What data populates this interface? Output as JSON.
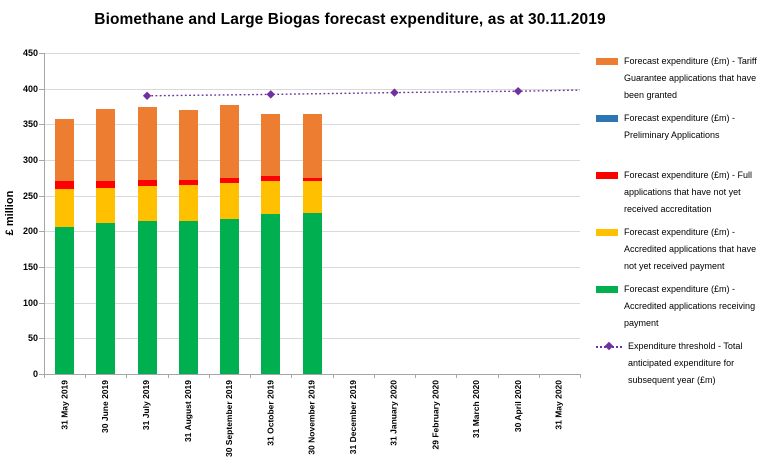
{
  "chart_data": {
    "type": "bar",
    "stacked": true,
    "title": "Biomethane and Large Biogas forecast expenditure, as at 30.11.2019",
    "ylabel": "£ million",
    "ylim": [
      0,
      450
    ],
    "ytick_interval": 50,
    "grid": "horizontal",
    "legend_position": "right",
    "categories": [
      "31 May 2019",
      "30 June 2019",
      "31 July 2019",
      "31 August 2019",
      "30 September 2019",
      "31 October 2019",
      "30 November 2019",
      "31 December 2019",
      "31 January 2020",
      "29 February 2020",
      "31 March 2020",
      "30 April 2020",
      "31 May 2020"
    ],
    "series": [
      {
        "name": "Forecast expenditure (£m) - Tariff Guarantee applications that have been granted",
        "color": "#ED7D31",
        "values": [
          88,
          101,
          102,
          98,
          102,
          88,
          89,
          0,
          0,
          0,
          0,
          0,
          0
        ]
      },
      {
        "name": "Forecast expenditure (£m) - Preliminary Applications",
        "color": "#2E75B6",
        "values": [
          0,
          0,
          0,
          0,
          0,
          0,
          0,
          0,
          0,
          0,
          0,
          0,
          0
        ]
      },
      {
        "name": "Forecast expenditure (£m) - Full applications that have not yet received accreditation",
        "color": "#FF0000",
        "values": [
          10,
          9,
          8,
          7,
          7,
          6,
          5,
          0,
          0,
          0,
          0,
          0,
          0
        ]
      },
      {
        "name": "Forecast expenditure (£m) - Accredited applications that have not yet received payment",
        "color": "#FFC000",
        "values": [
          54,
          49,
          50,
          50,
          51,
          47,
          44,
          0,
          0,
          0,
          0,
          0,
          0
        ]
      },
      {
        "name": "Forecast expenditure (£m) - Accredited applications receiving payment",
        "color": "#00B050",
        "values": [
          206,
          212,
          214,
          215,
          217,
          224,
          226,
          0,
          0,
          0,
          0,
          0,
          0
        ]
      }
    ],
    "bar_totals": [
      358,
      371,
      374,
      370,
      377,
      365,
      364,
      0,
      0,
      0,
      0,
      0,
      0
    ],
    "threshold_line": {
      "label": "Expenditure threshold - Total anticipated expenditure for subsequent year (£m)",
      "color": "#7030A0",
      "style": "dotted-with-diamond-markers",
      "points": [
        {
          "category": "31 July 2019",
          "value": 390
        },
        {
          "category": "31 October 2019",
          "value": 392
        },
        {
          "category": "31 January 2020",
          "value": 394.5
        },
        {
          "category": "30 April 2020",
          "value": 396.5
        }
      ],
      "extends_to_plot_edge": true,
      "edge_value": 398
    },
    "colors": {
      "gridline": "#D9D9D9",
      "axis": "#A6A6A6",
      "text": "#000000",
      "background": "#FFFFFF"
    }
  }
}
